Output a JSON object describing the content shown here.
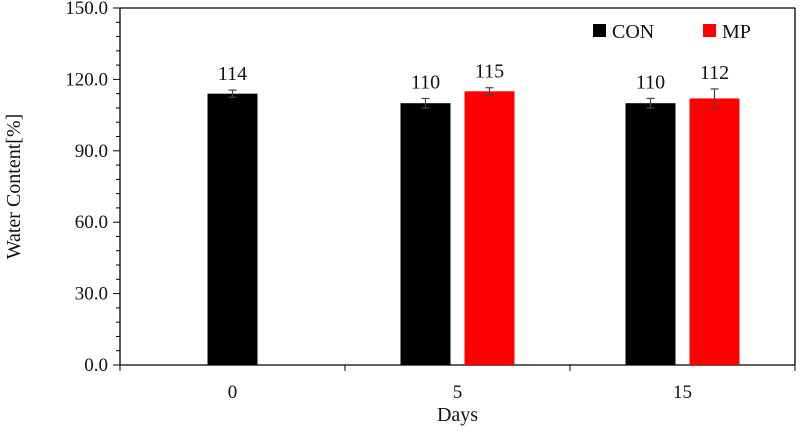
{
  "chart_data": {
    "type": "bar",
    "title": "",
    "xlabel": "Days",
    "ylabel": "Water Content[%]",
    "ylim": [
      0,
      150
    ],
    "yticks": [
      "0.0",
      "30.0",
      "60.0",
      "90.0",
      "120.0",
      "150.0"
    ],
    "categories": [
      "0",
      "5",
      "15"
    ],
    "series": [
      {
        "name": "CON",
        "color": "#000000",
        "values": [
          114,
          110,
          110
        ],
        "errors": [
          1.5,
          2,
          2
        ],
        "labels": [
          "114",
          "110",
          "110"
        ]
      },
      {
        "name": "MP",
        "color": "#ff0000",
        "values": [
          null,
          115,
          112
        ],
        "errors": [
          null,
          1.5,
          4
        ],
        "labels": [
          "",
          "115",
          "112"
        ]
      }
    ],
    "legend": "top-right",
    "grid": false
  }
}
